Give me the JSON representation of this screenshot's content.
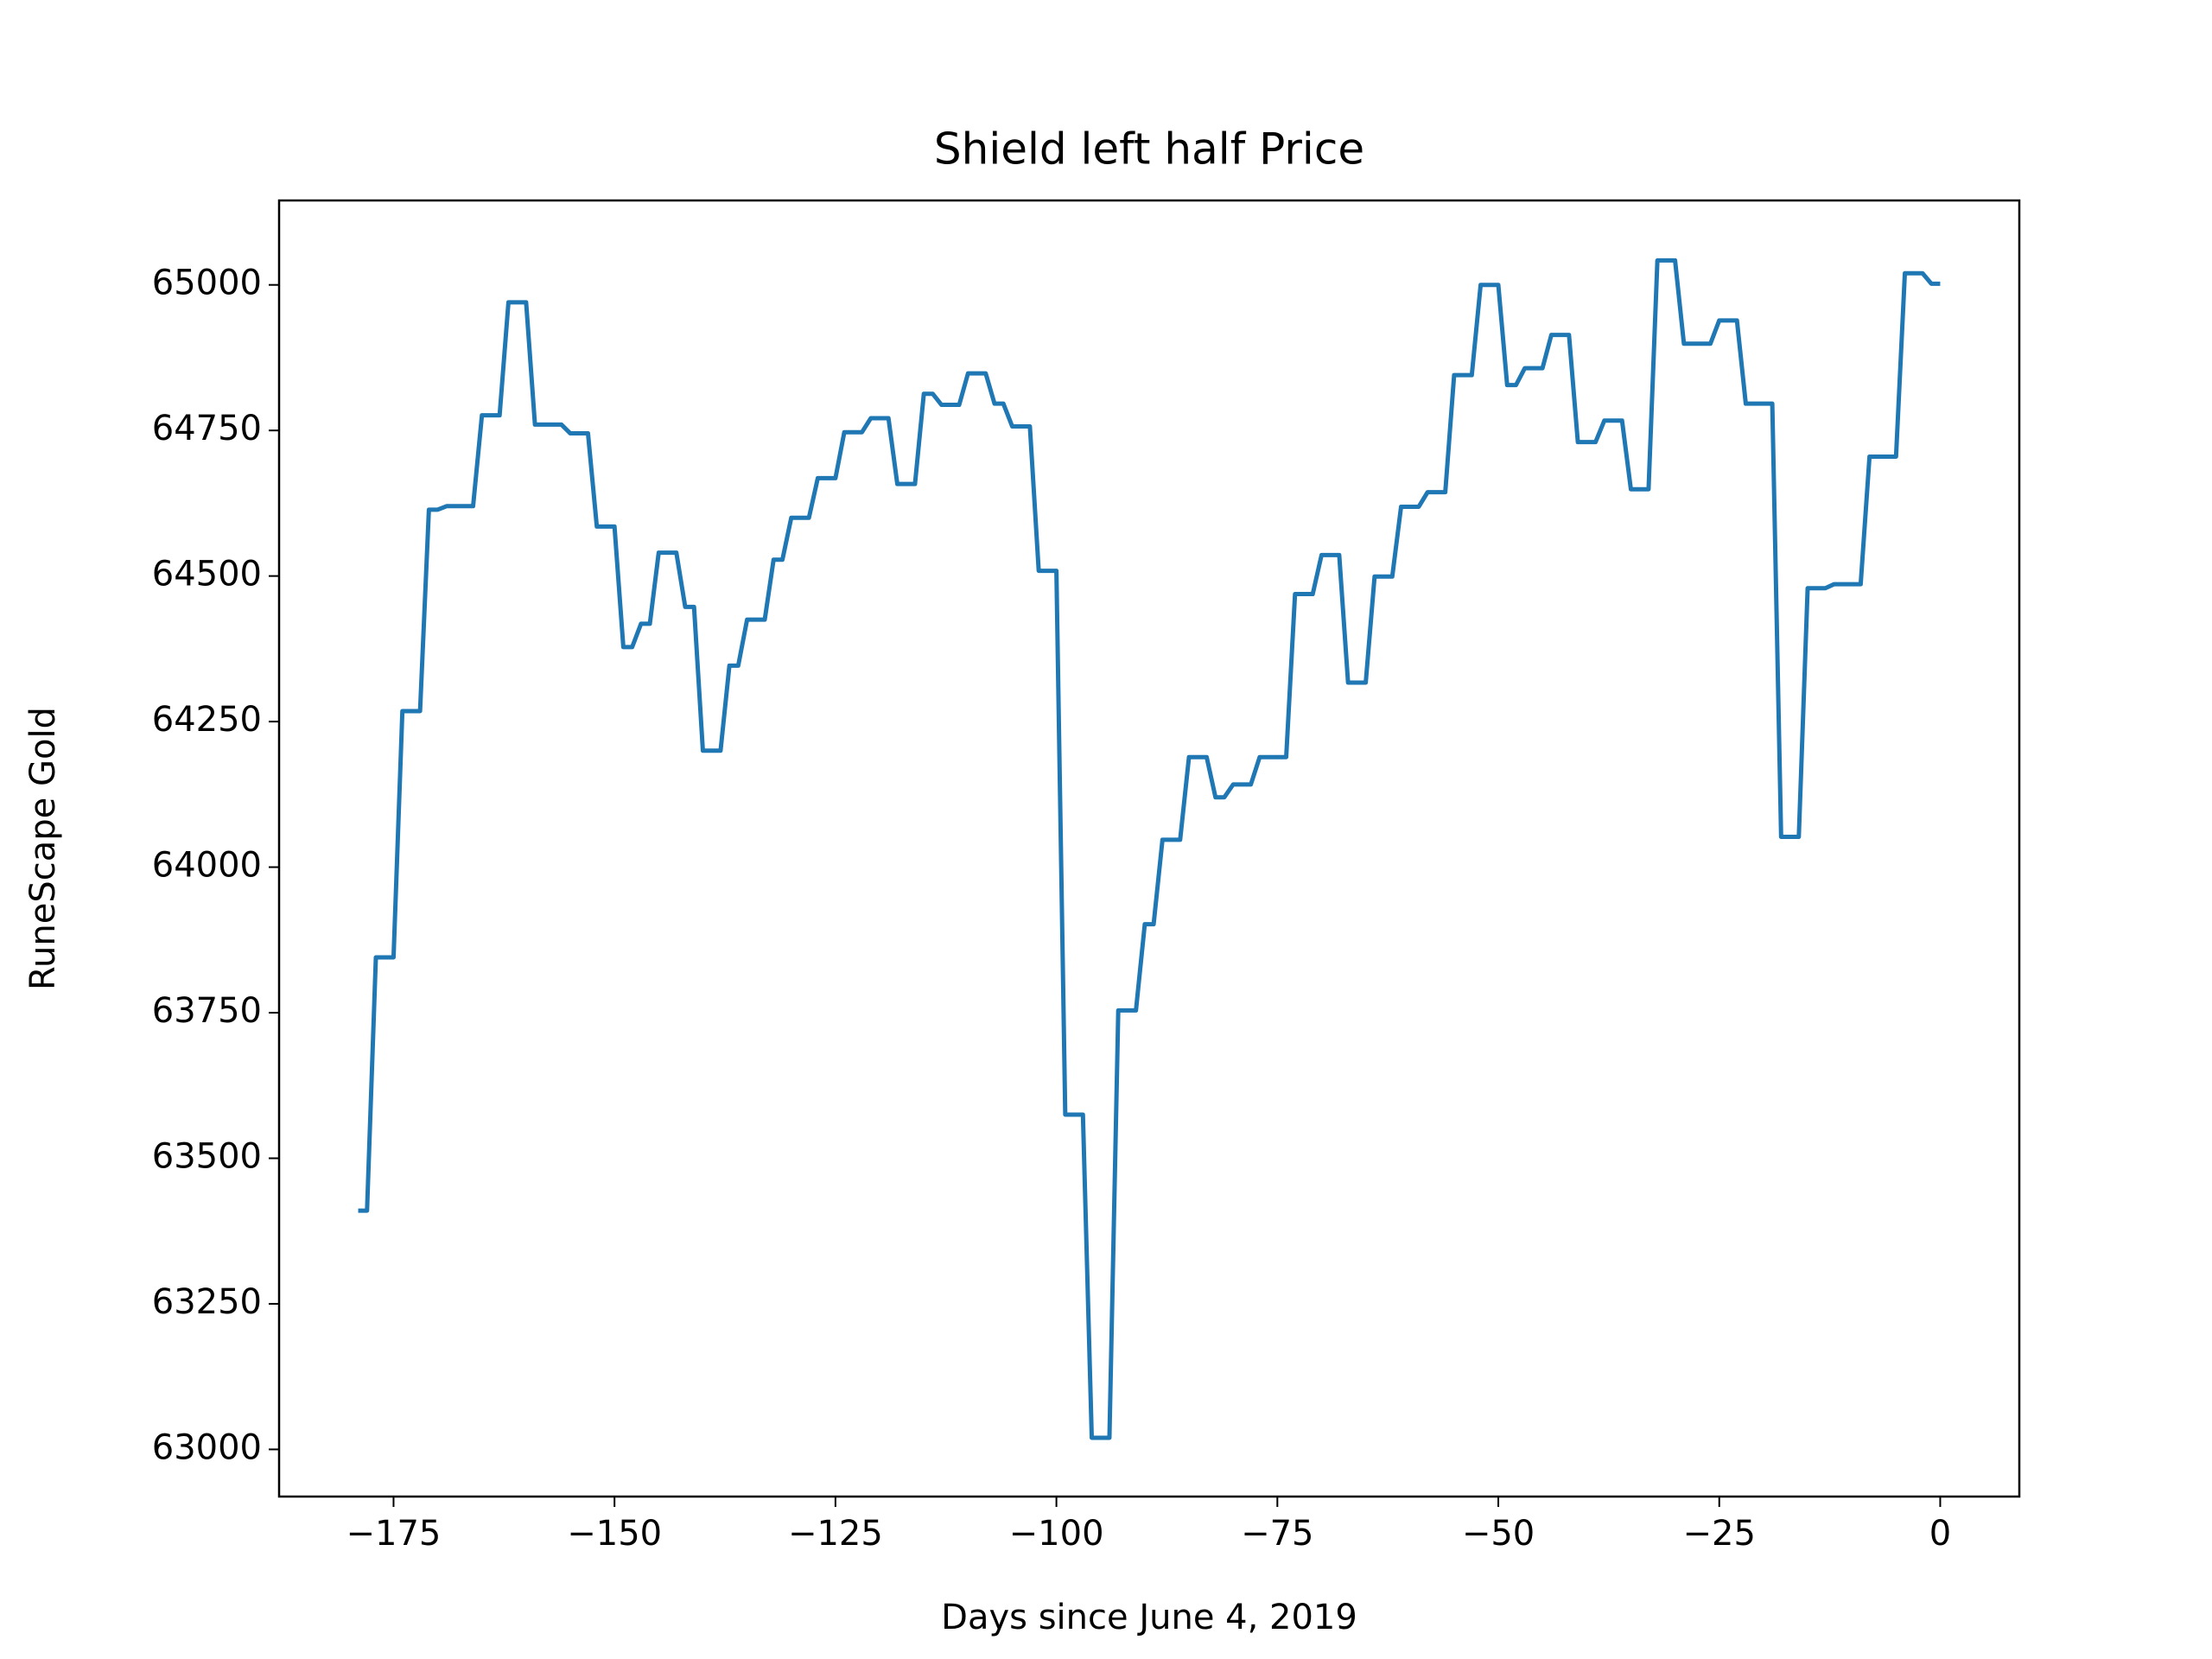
{
  "chart_data": {
    "type": "line",
    "title": "Shield left half Price",
    "xlabel": "Days since June 4, 2019",
    "ylabel": "RuneScape Gold",
    "xlim": [
      -187.95,
      8.95
    ],
    "ylim": [
      62919,
      65145
    ],
    "xticks": [
      {
        "value": -175,
        "label": "−175"
      },
      {
        "value": -150,
        "label": "−150"
      },
      {
        "value": -125,
        "label": "−125"
      },
      {
        "value": -100,
        "label": "−100"
      },
      {
        "value": -75,
        "label": "−75"
      },
      {
        "value": -50,
        "label": "−50"
      },
      {
        "value": -25,
        "label": "−25"
      },
      0
    ],
    "yticks": [
      63000,
      63250,
      63500,
      63750,
      64000,
      64250,
      64500,
      64750,
      65000
    ],
    "series": [
      {
        "name": "Price",
        "color": "#1f77b4",
        "x": [
          -179,
          -178,
          -177,
          -175,
          -174,
          -172,
          -171,
          -170,
          -169,
          -166,
          -165,
          -163,
          -162,
          -160,
          -159,
          -156,
          -155,
          -153,
          -152,
          -150,
          -149,
          -148,
          -147,
          -146,
          -145,
          -143,
          -142,
          -141,
          -140,
          -138,
          -137,
          -136,
          -135,
          -133,
          -132,
          -131,
          -130,
          -128,
          -127,
          -125,
          -124,
          -122,
          -121,
          -119,
          -118,
          -116,
          -115,
          -114,
          -113,
          -111,
          -110,
          -108,
          -107,
          -106,
          -105,
          -103,
          -102,
          -100,
          -99,
          -97,
          -96,
          -94,
          -93,
          -91,
          -90,
          -89,
          -88,
          -86,
          -85,
          -83,
          -82,
          -81,
          -80,
          -78,
          -77,
          -74,
          -73,
          -71,
          -70,
          -68,
          -67,
          -65,
          -64,
          -62,
          -61,
          -59,
          -58,
          -56,
          -55,
          -53,
          -52,
          -50,
          -49,
          -48,
          -47,
          -45,
          -44,
          -42,
          -41,
          -39,
          -38,
          -36,
          -35,
          -33,
          -32,
          -30,
          -29,
          -26,
          -25,
          -23,
          -22,
          -19,
          -18,
          -16,
          -15,
          -13,
          -12,
          -9,
          -8,
          -5,
          -4,
          -2,
          -1,
          0
        ],
        "values": [
          63410,
          63410,
          63845,
          63845,
          64268,
          64268,
          64614,
          64614,
          64620,
          64620,
          64776,
          64776,
          64970,
          64970,
          64760,
          64760,
          64745,
          64745,
          64585,
          64585,
          64378,
          64378,
          64418,
          64418,
          64540,
          64540,
          64447,
          64447,
          64200,
          64200,
          64346,
          64346,
          64425,
          64425,
          64528,
          64528,
          64600,
          64600,
          64668,
          64668,
          64747,
          64747,
          64771,
          64771,
          64658,
          64658,
          64813,
          64813,
          64794,
          64794,
          64848,
          64848,
          64796,
          64796,
          64757,
          64757,
          64509,
          64509,
          63575,
          63575,
          63020,
          63020,
          63754,
          63754,
          63902,
          63902,
          64047,
          64047,
          64189,
          64189,
          64120,
          64120,
          64142,
          64142,
          64189,
          64189,
          64469,
          64469,
          64536,
          64536,
          64317,
          64317,
          64499,
          64499,
          64619,
          64619,
          64644,
          64644,
          64845,
          64845,
          65000,
          65000,
          64828,
          64828,
          64857,
          64857,
          64914,
          64914,
          64730,
          64730,
          64767,
          64767,
          64649,
          64649,
          65042,
          65042,
          64899,
          64899,
          64939,
          64939,
          64796,
          64796,
          64052,
          64052,
          64479,
          64479,
          64486,
          64486,
          64705,
          64705,
          65020,
          65020,
          65002,
          65002
        ]
      }
    ]
  }
}
